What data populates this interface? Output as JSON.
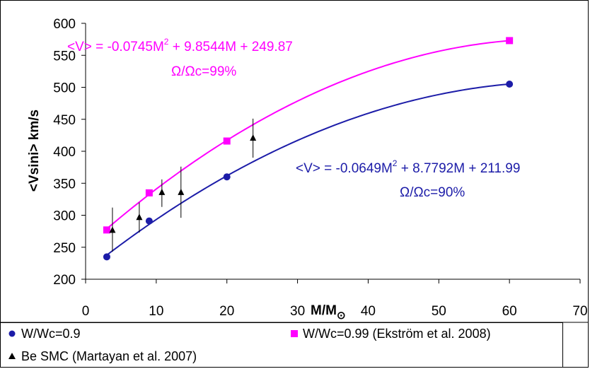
{
  "chart_data": {
    "type": "scatter",
    "xlabel": "M/M",
    "xlabel_sub": "⊙",
    "ylabel": "<Vsini> km/s",
    "xlim": [
      0,
      70
    ],
    "ylim": [
      200,
      600
    ],
    "xticks": [
      0,
      10,
      20,
      30,
      40,
      50,
      60,
      70
    ],
    "yticks": [
      200,
      250,
      300,
      350,
      400,
      450,
      500,
      550,
      600
    ],
    "grid": false,
    "legend_position": "bottom",
    "series": [
      {
        "name": "W/Wc=0.9",
        "color": "#1c1ca8",
        "marker": "circle",
        "points": [
          [
            3,
            235
          ],
          [
            9,
            291
          ],
          [
            20,
            360
          ],
          [
            60,
            505
          ]
        ],
        "fit": {
          "a": -0.0649,
          "b": 8.7792,
          "c": 211.99
        }
      },
      {
        "name": "W/Wc=0.99 (Ekström et al. 2008)",
        "color": "#ff00ff",
        "marker": "square",
        "points": [
          [
            3,
            277
          ],
          [
            9,
            335
          ],
          [
            20,
            416
          ],
          [
            60,
            573
          ]
        ],
        "fit": {
          "a": -0.0745,
          "b": 9.8544,
          "c": 249.87
        }
      },
      {
        "name": "Be SMC (Martayan et al. 2007)",
        "color": "#000000",
        "marker": "triangle",
        "points": [
          {
            "x": 3.8,
            "y": 277,
            "lo": 243,
            "hi": 312
          },
          {
            "x": 7.6,
            "y": 297,
            "lo": 273,
            "hi": 320
          },
          {
            "x": 10.8,
            "y": 336,
            "lo": 313,
            "hi": 356
          },
          {
            "x": 13.5,
            "y": 336,
            "lo": 296,
            "hi": 376
          },
          {
            "x": 23.7,
            "y": 421,
            "lo": 390,
            "hi": 451
          }
        ]
      }
    ],
    "annotations": {
      "pink_eq_pre": "<V> = -0.0745M",
      "pink_eq_sup": "2",
      "pink_eq_post": " + 9.8544M + 249.87",
      "pink_ratio": "Ω/Ωc=99%",
      "blue_eq_pre": "<V> = -0.0649M",
      "blue_eq_sup": "2",
      "blue_eq_post": " + 8.7792M + 211.99",
      "blue_ratio": "Ω/Ωc=90%"
    }
  }
}
